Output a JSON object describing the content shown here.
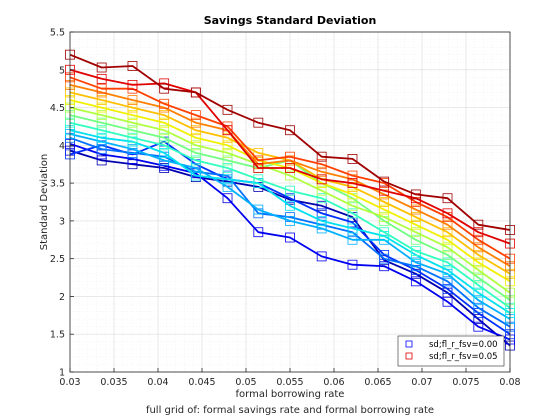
{
  "chart_data": {
    "type": "line",
    "title": "Savings Standard Deviation",
    "xlabel": "formal borrowing rate",
    "ylabel": "Standard Deviation",
    "footnote": "full grid of: formal savings rate and formal borrowing rate",
    "xlim": [
      0.03,
      0.08
    ],
    "ylim": [
      1,
      5.5
    ],
    "xticks": [
      "0.03",
      "0.035",
      "0.04",
      "0.045",
      "0.05",
      "0.055",
      "0.06",
      "0.065",
      "0.07",
      "0.075",
      "0.08"
    ],
    "yticks": [
      "1",
      "1.5",
      "2",
      "2.5",
      "3",
      "3.5",
      "4",
      "4.5",
      "5",
      "5.5"
    ],
    "grid": true,
    "colormap": "jet",
    "marker": "square",
    "x": [
      0.03,
      0.0336,
      0.0371,
      0.0407,
      0.0443,
      0.0479,
      0.0514,
      0.055,
      0.0586,
      0.0621,
      0.0657,
      0.0693,
      0.0729,
      0.0764,
      0.08
    ],
    "series": [
      {
        "color": "#0000B0",
        "values": [
          3.93,
          3.8,
          3.75,
          3.7,
          3.58,
          3.52,
          3.45,
          3.28,
          3.2,
          3.05,
          2.48,
          2.3,
          2.05,
          1.7,
          1.35
        ]
      },
      {
        "color": "#0000F0",
        "values": [
          4.02,
          3.88,
          3.82,
          3.73,
          3.63,
          3.3,
          2.85,
          2.78,
          2.53,
          2.42,
          2.4,
          2.2,
          1.93,
          1.6,
          1.43
        ]
      },
      {
        "color": "#0030FF",
        "values": [
          3.88,
          4.0,
          3.88,
          4.05,
          3.75,
          3.55,
          3.5,
          3.3,
          3.1,
          2.98,
          2.55,
          2.35,
          2.1,
          1.78,
          1.5
        ]
      },
      {
        "color": "#0070FF",
        "values": [
          4.1,
          3.95,
          3.9,
          3.85,
          3.65,
          3.6,
          3.1,
          3.05,
          2.95,
          2.85,
          2.5,
          2.4,
          2.2,
          1.85,
          1.6
        ]
      },
      {
        "color": "#00B0FF",
        "values": [
          4.15,
          4.05,
          3.95,
          3.8,
          3.7,
          3.45,
          3.15,
          3.0,
          2.9,
          2.75,
          2.75,
          2.45,
          2.3,
          1.95,
          1.7
        ]
      },
      {
        "color": "#00E0F0",
        "values": [
          4.2,
          4.1,
          4.05,
          3.9,
          3.6,
          3.55,
          3.5,
          3.2,
          3.0,
          2.9,
          2.8,
          2.55,
          2.35,
          2.05,
          1.78
        ]
      },
      {
        "color": "#30FFC0",
        "values": [
          4.3,
          4.2,
          4.1,
          4.0,
          3.8,
          3.7,
          3.55,
          3.4,
          3.3,
          3.1,
          2.85,
          2.6,
          2.45,
          2.15,
          1.85
        ]
      },
      {
        "color": "#70FF80",
        "values": [
          4.4,
          4.3,
          4.2,
          4.1,
          3.9,
          3.8,
          3.7,
          3.8,
          3.5,
          3.3,
          3.0,
          2.75,
          2.55,
          2.25,
          1.95
        ]
      },
      {
        "color": "#B0FF40",
        "values": [
          4.5,
          4.4,
          4.3,
          4.2,
          4.0,
          3.9,
          3.75,
          3.6,
          3.4,
          3.2,
          3.05,
          2.85,
          2.65,
          2.35,
          2.05
        ]
      },
      {
        "color": "#F0F000",
        "values": [
          4.6,
          4.5,
          4.4,
          4.3,
          4.1,
          4.0,
          3.8,
          3.7,
          3.5,
          3.35,
          3.15,
          2.95,
          2.75,
          2.45,
          2.2
        ]
      },
      {
        "color": "#FFC000",
        "values": [
          4.7,
          4.6,
          4.5,
          4.4,
          4.2,
          4.1,
          3.9,
          3.8,
          3.55,
          3.45,
          3.25,
          3.05,
          2.85,
          2.55,
          2.3
        ]
      },
      {
        "color": "#FF8000",
        "values": [
          4.8,
          4.7,
          4.6,
          4.5,
          4.3,
          4.2,
          3.75,
          3.8,
          3.65,
          3.55,
          3.35,
          3.15,
          2.95,
          2.65,
          2.4
        ]
      },
      {
        "color": "#FF4000",
        "values": [
          4.9,
          4.75,
          4.75,
          4.55,
          4.4,
          4.25,
          3.8,
          3.85,
          3.75,
          3.6,
          3.5,
          3.25,
          3.05,
          2.75,
          2.5
        ]
      },
      {
        "color": "#E00000",
        "values": [
          5.0,
          4.88,
          4.8,
          4.82,
          4.7,
          4.2,
          3.7,
          3.7,
          3.55,
          3.5,
          3.4,
          3.3,
          3.1,
          2.85,
          2.7
        ]
      },
      {
        "color": "#A00000",
        "values": [
          5.2,
          5.03,
          5.05,
          4.75,
          4.7,
          4.47,
          4.3,
          4.2,
          3.85,
          3.82,
          3.52,
          3.35,
          3.3,
          2.95,
          2.88
        ]
      }
    ],
    "legend": {
      "placement": "bottom-right",
      "entries": [
        {
          "label": "sd;fl_r_fsv=0.00",
          "color": "#0000FF"
        },
        {
          "label": "sd;fl_r_fsv=0.05",
          "color": "#DD0000"
        }
      ]
    }
  }
}
